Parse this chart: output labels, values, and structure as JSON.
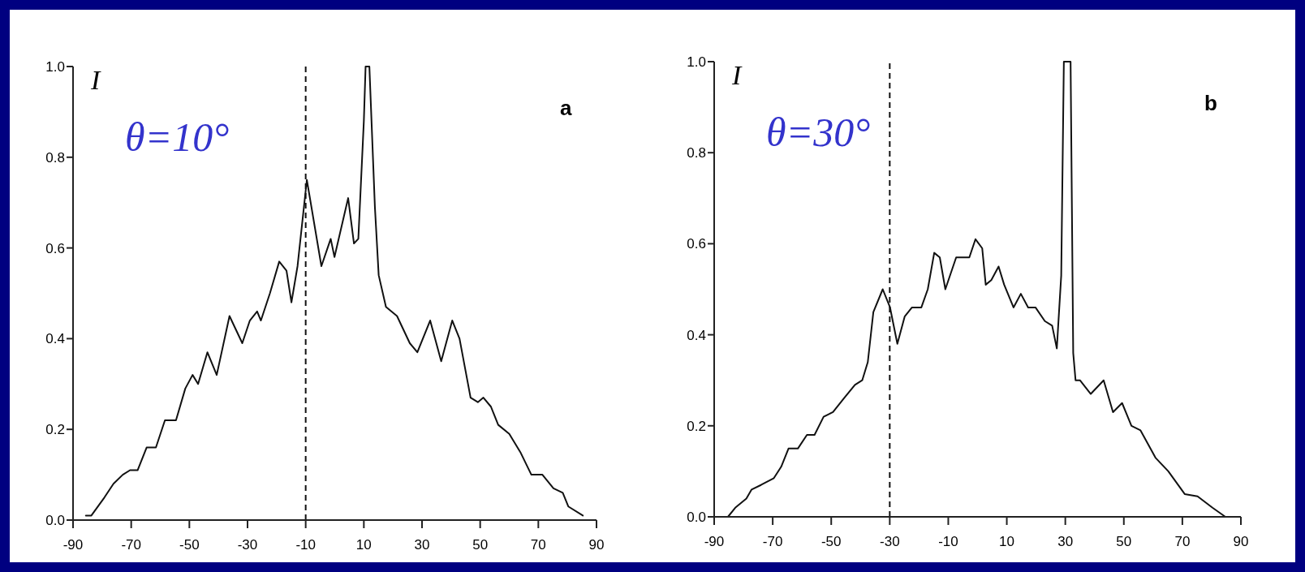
{
  "chart_data": [
    {
      "type": "line",
      "ylabel": "I",
      "annotations": [
        "θ=10°",
        "a"
      ],
      "xlim": [
        -90,
        90
      ],
      "ylim": [
        0,
        1
      ],
      "xticks": [
        -90,
        -70,
        -50,
        -30,
        -10,
        10,
        30,
        50,
        70,
        90
      ],
      "yticks": [
        {
          "value": 0,
          "label": "0.0"
        },
        {
          "value": 0.2,
          "label": "0.2"
        },
        {
          "value": 0.4,
          "label": "0.4"
        },
        {
          "value": 0.6,
          "label": "0.6"
        },
        {
          "value": 0.8,
          "label": "0.8"
        },
        {
          "value": 1,
          "label": "1.0"
        }
      ],
      "ref_lines": [
        {
          "axis": "x",
          "value": -10,
          "line_style": "dashed",
          "color": "#111111"
        }
      ],
      "series": [
        {
          "color": "#111111",
          "line_style": "solid",
          "x": [
            -85.6,
            -83.7,
            -79.2,
            -76.1,
            -72.9,
            -70.4,
            -67.8,
            -64.7,
            -61.5,
            -58.4,
            -54.6,
            -51.4,
            -48.9,
            -47.0,
            -43.8,
            -40.6,
            -36.2,
            -31.8,
            -29.2,
            -26.7,
            -25.4,
            -22.3,
            -19.1,
            -16.6,
            -14.9,
            -12.8,
            -9.6,
            -4.6,
            -1.4,
            -0.1,
            4.6,
            6.6,
            8.1,
            10.0,
            10.6,
            11.9,
            13.8,
            15.1,
            17.6,
            21.4,
            25.8,
            28.4,
            32.8,
            36.6,
            40.4,
            42.9,
            46.7,
            49.2,
            51.1,
            53.7,
            56.2,
            60.0,
            63.8,
            67.6,
            71.4,
            75.2,
            78.4,
            80.3,
            85.3
          ],
          "values": [
            0.01,
            0.01,
            0.05,
            0.08,
            0.1,
            0.11,
            0.11,
            0.16,
            0.16,
            0.22,
            0.22,
            0.29,
            0.32,
            0.3,
            0.37,
            0.32,
            0.45,
            0.39,
            0.44,
            0.46,
            0.44,
            0.5,
            0.57,
            0.55,
            0.48,
            0.56,
            0.75,
            0.56,
            0.62,
            0.58,
            0.71,
            0.61,
            0.62,
            0.88,
            1,
            1,
            0.69,
            0.54,
            0.47,
            0.45,
            0.39,
            0.37,
            0.44,
            0.35,
            0.44,
            0.4,
            0.27,
            0.26,
            0.27,
            0.25,
            0.21,
            0.19,
            0.15,
            0.1,
            0.1,
            0.07,
            0.06,
            0.03,
            0.01
          ]
        }
      ]
    },
    {
      "type": "line",
      "ylabel": "I",
      "annotations": [
        "θ=30°",
        "b"
      ],
      "xlim": [
        -90,
        90
      ],
      "ylim": [
        0,
        1
      ],
      "xticks": [
        -90,
        -70,
        -50,
        -30,
        -10,
        10,
        30,
        50,
        70,
        90
      ],
      "yticks": [
        {
          "value": 0,
          "label": "0.0"
        },
        {
          "value": 0.2,
          "label": "0.2"
        },
        {
          "value": 0.4,
          "label": "0.4"
        },
        {
          "value": 0.6,
          "label": "0.6"
        },
        {
          "value": 0.8,
          "label": "0.8"
        },
        {
          "value": 1,
          "label": "1.0"
        }
      ],
      "ref_lines": [
        {
          "axis": "x",
          "value": -30,
          "line_style": "dashed",
          "color": "#111111"
        }
      ],
      "series": [
        {
          "color": "#111111",
          "line_style": "solid",
          "x": [
            -85.3,
            -82.8,
            -79.0,
            -77.2,
            -74.0,
            -69.6,
            -67.1,
            -64.6,
            -61.4,
            -58.3,
            -55.7,
            -52.6,
            -49.4,
            -45.7,
            -41.9,
            -39.4,
            -37.5,
            -35.6,
            -32.4,
            -29.9,
            -27.4,
            -24.9,
            -22.4,
            -19.2,
            -17.0,
            -14.8,
            -12.9,
            -11.0,
            -7.3,
            -4.1,
            -2.8,
            -0.7,
            1.6,
            2.8,
            4.7,
            7.2,
            9.1,
            12.3,
            14.8,
            17.3,
            19.8,
            23.0,
            25.5,
            27.1,
            28.6,
            29.5,
            31.8,
            32.7,
            33.5,
            35.0,
            38.7,
            43.1,
            46.3,
            49.4,
            52.6,
            55.7,
            60.8,
            65.2,
            70.8,
            75.2,
            80.3,
            84.7
          ],
          "values": [
            0,
            0.02,
            0.04,
            0.06,
            0.07,
            0.085,
            0.11,
            0.15,
            0.15,
            0.18,
            0.18,
            0.22,
            0.23,
            0.26,
            0.29,
            0.3,
            0.34,
            0.45,
            0.5,
            0.46,
            0.38,
            0.44,
            0.46,
            0.46,
            0.5,
            0.58,
            0.57,
            0.5,
            0.57,
            0.57,
            0.57,
            0.61,
            0.59,
            0.51,
            0.52,
            0.55,
            0.51,
            0.46,
            0.49,
            0.46,
            0.46,
            0.43,
            0.42,
            0.37,
            0.53,
            1,
            1,
            0.36,
            0.3,
            0.3,
            0.27,
            0.3,
            0.23,
            0.25,
            0.2,
            0.19,
            0.13,
            0.1,
            0.05,
            0.045,
            0.02,
            0
          ]
        }
      ]
    }
  ]
}
